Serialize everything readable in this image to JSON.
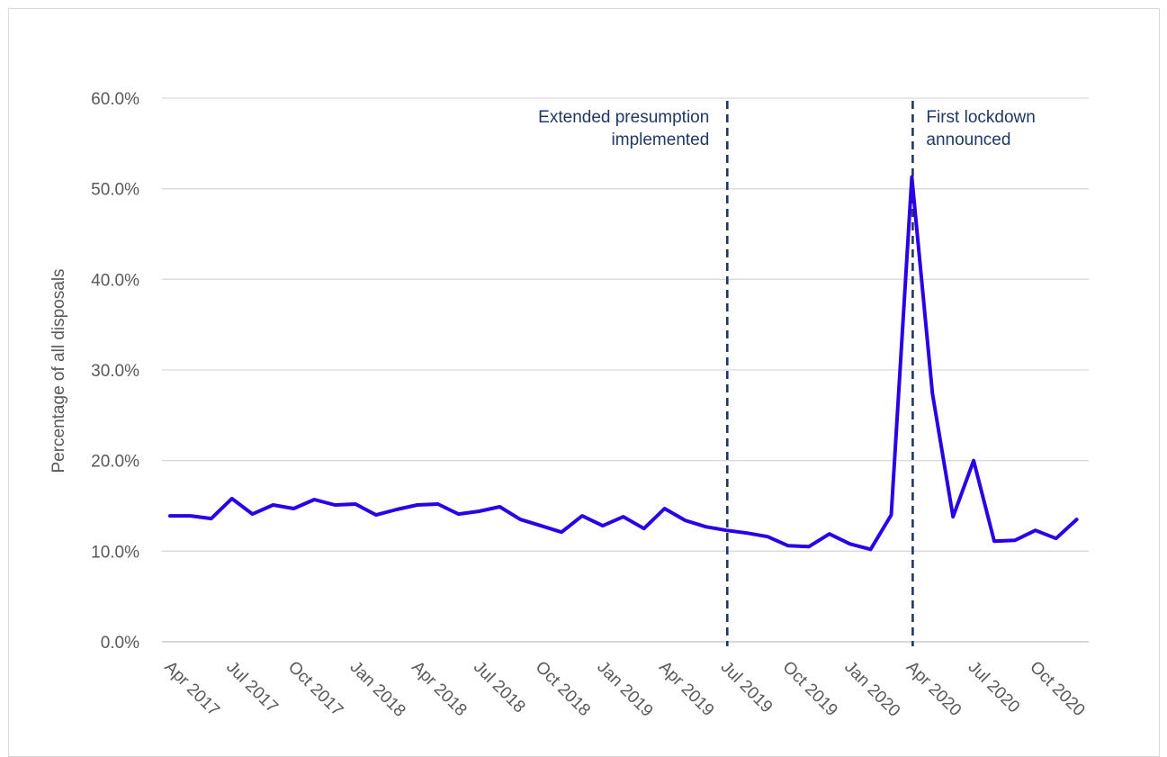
{
  "chart_data": {
    "type": "line",
    "title": "",
    "xlabel": "",
    "ylabel": "Percentage of all disposals",
    "ylim": [
      0,
      60
    ],
    "y_ticks": [
      "0.0%",
      "10.0%",
      "20.0%",
      "30.0%",
      "40.0%",
      "50.0%",
      "60.0%"
    ],
    "y_tick_values": [
      0,
      10,
      20,
      30,
      40,
      50,
      60
    ],
    "grid": true,
    "x_tick_labels": [
      "Apr 2017",
      "Jul 2017",
      "Oct 2017",
      "Jan 2018",
      "Apr 2018",
      "Jul 2018",
      "Oct 2018",
      "Jan 2019",
      "Apr 2019",
      "Jul 2019",
      "Oct 2019",
      "Jan 2020",
      "Apr 2020",
      "Jul 2020",
      "Oct 2020"
    ],
    "categories": [
      "Apr 2017",
      "May 2017",
      "Jun 2017",
      "Jul 2017",
      "Aug 2017",
      "Sep 2017",
      "Oct 2017",
      "Nov 2017",
      "Dec 2017",
      "Jan 2018",
      "Feb 2018",
      "Mar 2018",
      "Apr 2018",
      "May 2018",
      "Jun 2018",
      "Jul 2018",
      "Aug 2018",
      "Sep 2018",
      "Oct 2018",
      "Nov 2018",
      "Dec 2018",
      "Jan 2019",
      "Feb 2019",
      "Mar 2019",
      "Apr 2019",
      "May 2019",
      "Jun 2019",
      "Jul 2019",
      "Aug 2019",
      "Sep 2019",
      "Oct 2019",
      "Nov 2019",
      "Dec 2019",
      "Jan 2020",
      "Feb 2020",
      "Mar 2020",
      "Apr 2020",
      "May 2020",
      "Jun 2020",
      "Jul 2020",
      "Aug 2020",
      "Sep 2020",
      "Oct 2020",
      "Nov 2020",
      "Dec 2020"
    ],
    "series": [
      {
        "color": "#2b00e6",
        "values": [
          13.9,
          13.9,
          13.6,
          15.8,
          14.1,
          15.1,
          14.7,
          15.7,
          15.1,
          15.2,
          14.0,
          14.6,
          15.1,
          15.2,
          14.1,
          14.4,
          14.9,
          13.5,
          12.8,
          12.1,
          13.9,
          12.8,
          13.8,
          12.5,
          14.7,
          13.4,
          12.7,
          12.3,
          12.0,
          11.6,
          10.6,
          10.5,
          11.9,
          10.8,
          10.2,
          14.0,
          51.3,
          27.4,
          13.8,
          20.0,
          11.1,
          11.2,
          12.3,
          11.4,
          13.5
        ]
      }
    ],
    "annotations": [
      {
        "label_lines": [
          "Extended presumption",
          "implemented"
        ],
        "category": "Jul 2019",
        "align": "left",
        "color": "#1f3864"
      },
      {
        "label_lines": [
          "First lockdown",
          "announced"
        ],
        "category": "Apr 2020",
        "align": "right",
        "color": "#1f3864"
      }
    ]
  }
}
